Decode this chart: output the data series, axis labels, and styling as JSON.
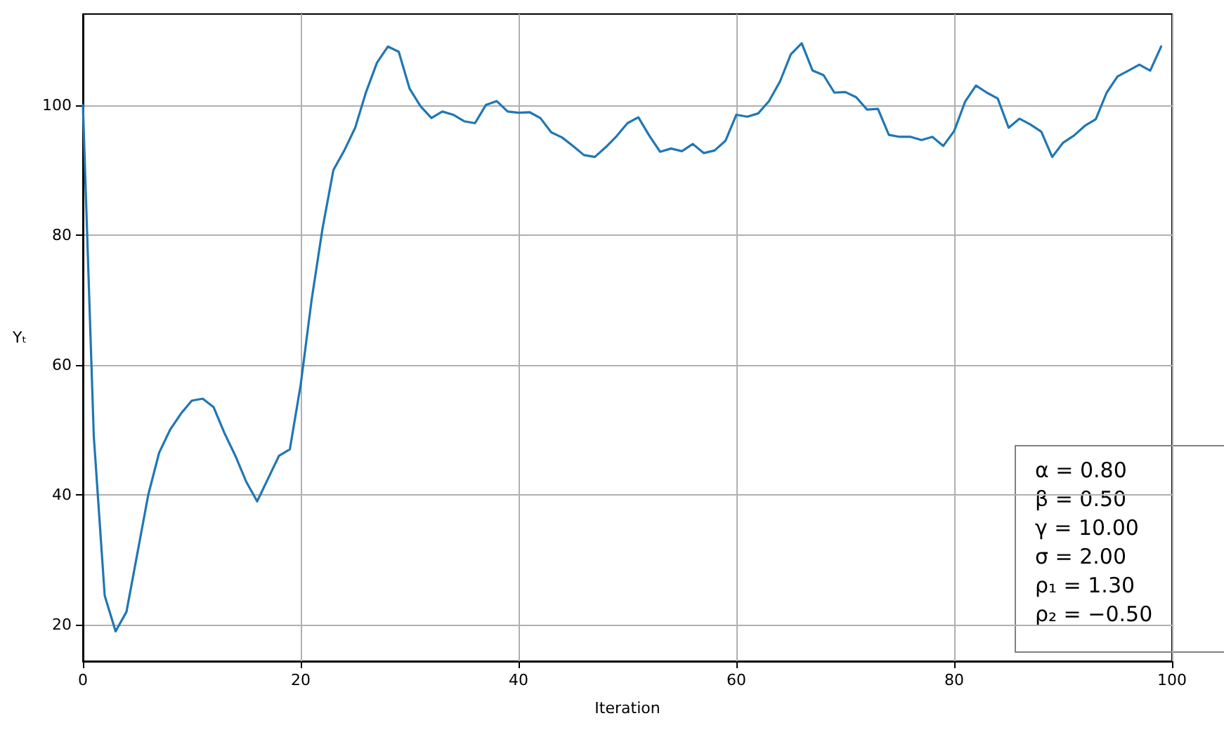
{
  "chart_data": {
    "type": "line",
    "xlabel": "Iteration",
    "ylabel": "Yₜ",
    "x": [
      0,
      1,
      2,
      3,
      4,
      5,
      6,
      7,
      8,
      9,
      10,
      11,
      12,
      13,
      14,
      15,
      16,
      17,
      18,
      19,
      20,
      21,
      22,
      23,
      24,
      25,
      26,
      27,
      28,
      29,
      30,
      31,
      32,
      33,
      34,
      35,
      36,
      37,
      38,
      39,
      40,
      41,
      42,
      43,
      44,
      45,
      46,
      47,
      48,
      49,
      50,
      51,
      52,
      53,
      54,
      55,
      56,
      57,
      58,
      59,
      60,
      61,
      62,
      63,
      64,
      65,
      66,
      67,
      68,
      69,
      70,
      71,
      72,
      73,
      74,
      75,
      76,
      77,
      78,
      79,
      80,
      81,
      82,
      83,
      84,
      85,
      86,
      87,
      88,
      89,
      90,
      91,
      92,
      93,
      94,
      95,
      96,
      97,
      98,
      99
    ],
    "series": [
      {
        "color": "#1f77b4",
        "values": [
          100,
          49,
          24.5,
          19,
          22,
          31,
          40,
          46.5,
          50,
          52.5,
          54.5,
          54.8,
          53.5,
          49.5,
          46,
          42,
          39,
          42.5,
          46,
          47,
          57,
          70,
          81,
          90,
          93,
          96.5,
          102,
          106.5,
          109,
          108.2,
          102.5,
          99.8,
          98,
          99,
          98.5,
          97.5,
          97.2,
          100,
          100.6,
          99,
          98.8,
          98.9,
          98,
          95.8,
          95,
          93.7,
          92.3,
          92,
          93.5,
          95.2,
          97.2,
          98.1,
          95.3,
          92.8,
          93.3,
          92.9,
          94,
          92.6,
          93,
          94.5,
          98.5,
          98.2,
          98.7,
          100.6,
          103.6,
          107.8,
          109.5,
          105.3,
          104.6,
          101.9,
          102,
          101.2,
          99.3,
          99.4,
          95.4,
          95.1,
          95.1,
          94.6,
          95.1,
          93.7,
          96,
          100.5,
          103,
          101.9,
          101,
          96.5,
          97.9,
          97,
          95.9,
          92,
          94.2,
          95.3,
          96.8,
          97.8,
          101.9,
          104.4,
          105.3,
          106.2,
          105.3,
          109
        ]
      }
    ],
    "xlim": [
      0,
      100
    ],
    "xticks": [
      0,
      20,
      40,
      60,
      80,
      100
    ],
    "ylim": [
      14.4,
      114
    ],
    "yticks": [
      20,
      40,
      60,
      80,
      100
    ],
    "grid": true,
    "line_style": "solid",
    "marker": "none",
    "annotations": [
      "α = 0.80",
      "β = 0.50",
      "γ = 10.00",
      "σ = 2.00",
      "ρ₁ = 1.30",
      "ρ₂ = −0.50"
    ]
  }
}
